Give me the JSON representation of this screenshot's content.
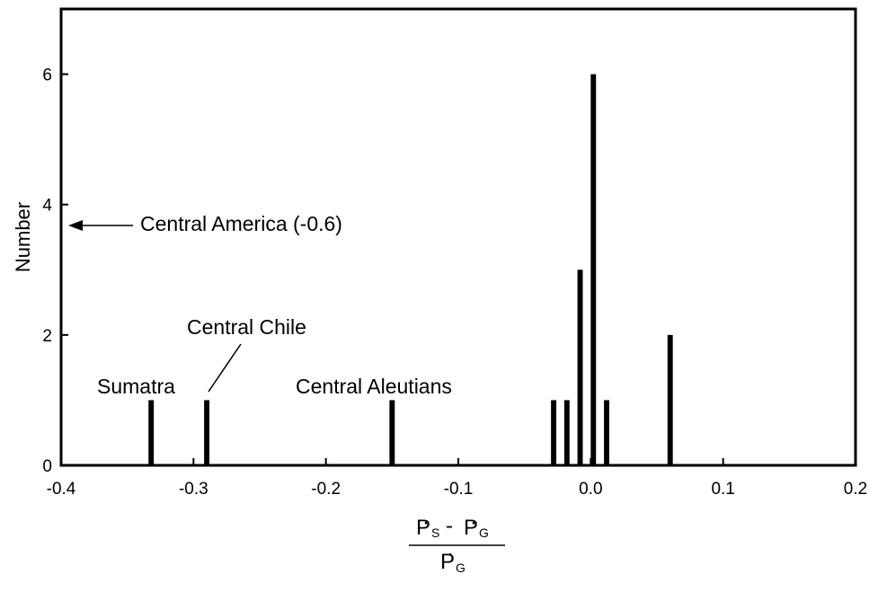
{
  "chart_data": {
    "type": "bar",
    "title": "",
    "ylabel": "Number",
    "xlabel": {
      "numerator": {
        "a": "P",
        "a_sub": "S",
        "op": "-",
        "b": "P",
        "b_sub": "G"
      },
      "denominator": {
        "a": "P",
        "a_sub": "G"
      }
    },
    "xlim": [
      -0.4,
      0.2
    ],
    "ylim": [
      0,
      7
    ],
    "x_ticks": [
      -0.4,
      -0.3,
      -0.2,
      -0.1,
      0.0,
      0.1,
      0.2
    ],
    "x_tick_labels": [
      "-0.4",
      "-0.3",
      "-0.2",
      "-0.1",
      "0.0",
      "0.1",
      "0.2"
    ],
    "y_ticks": [
      0,
      2,
      4,
      6
    ],
    "y_tick_labels": [
      "0",
      "2",
      "4",
      "6"
    ],
    "grid": false,
    "legend": "none",
    "bar_color": "#000000",
    "bar_width": 0.004,
    "bars": [
      {
        "x": -0.332,
        "value": 1
      },
      {
        "x": -0.29,
        "value": 1
      },
      {
        "x": -0.15,
        "value": 1
      },
      {
        "x": -0.028,
        "value": 1
      },
      {
        "x": -0.018,
        "value": 1
      },
      {
        "x": -0.008,
        "value": 3
      },
      {
        "x": 0.002,
        "value": 6
      },
      {
        "x": 0.012,
        "value": 1
      },
      {
        "x": 0.06,
        "value": 2
      }
    ],
    "annotations": [
      {
        "text": "Central America (-0.6)",
        "x": -0.33,
        "y": 3.7,
        "arrow_to": [
          -0.398,
          3.7
        ]
      },
      {
        "text": "Central Chile",
        "x": -0.295,
        "y": 2.05,
        "leader_to": [
          -0.29,
          1.15
        ]
      },
      {
        "text": "Sumatra",
        "x": -0.362,
        "y": 1.18
      },
      {
        "text": "Central Aleutians",
        "x": -0.195,
        "y": 1.18
      }
    ]
  }
}
